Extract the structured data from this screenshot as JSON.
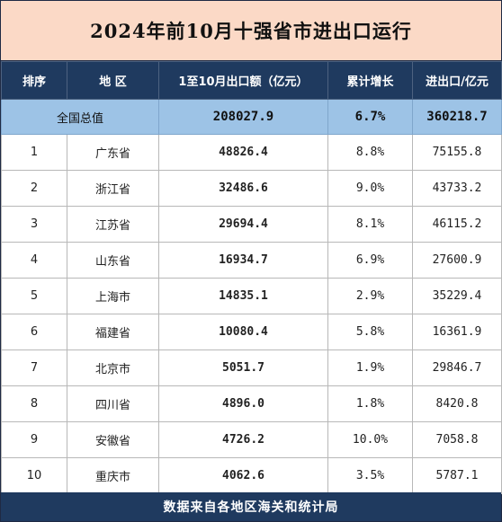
{
  "title": "2024年前10月十强省市进出口运行",
  "headers": {
    "rank": "排序",
    "region": "地  区",
    "export": "1至10月出口额（亿元）",
    "growth": "累计增长",
    "trade": "进出口/亿元"
  },
  "total": {
    "label": "全国总值",
    "export": "208027.9",
    "growth": "6.7%",
    "trade": "360218.7"
  },
  "rows": [
    {
      "rank": "1",
      "region": "广东省",
      "export": "48826.4",
      "growth": "8.8%",
      "trade": "75155.8"
    },
    {
      "rank": "2",
      "region": "浙江省",
      "export": "32486.6",
      "growth": "9.0%",
      "trade": "43733.2"
    },
    {
      "rank": "3",
      "region": "江苏省",
      "export": "29694.4",
      "growth": "8.1%",
      "trade": "46115.2"
    },
    {
      "rank": "4",
      "region": "山东省",
      "export": "16934.7",
      "growth": "6.9%",
      "trade": "27600.9"
    },
    {
      "rank": "5",
      "region": "上海市",
      "export": "14835.1",
      "growth": "2.9%",
      "trade": "35229.4"
    },
    {
      "rank": "6",
      "region": "福建省",
      "export": "10080.4",
      "growth": "5.8%",
      "trade": "16361.9"
    },
    {
      "rank": "7",
      "region": "北京市",
      "export": "5051.7",
      "growth": "1.9%",
      "trade": "29846.7"
    },
    {
      "rank": "8",
      "region": "四川省",
      "export": "4896.0",
      "growth": "1.8%",
      "trade": "8420.8"
    },
    {
      "rank": "9",
      "region": "安徽省",
      "export": "4726.2",
      "growth": "10.0%",
      "trade": "7058.8"
    },
    {
      "rank": "10",
      "region": "重庆市",
      "export": "4062.6",
      "growth": "3.5%",
      "trade": "5787.1"
    }
  ],
  "footer": "数据来自各地区海关和统计局",
  "colors": {
    "title_bg": "#fbd9c6",
    "header_bg": "#1f3a5f",
    "total_bg": "#9dc3e6",
    "footer_bg": "#1f3a5f"
  }
}
